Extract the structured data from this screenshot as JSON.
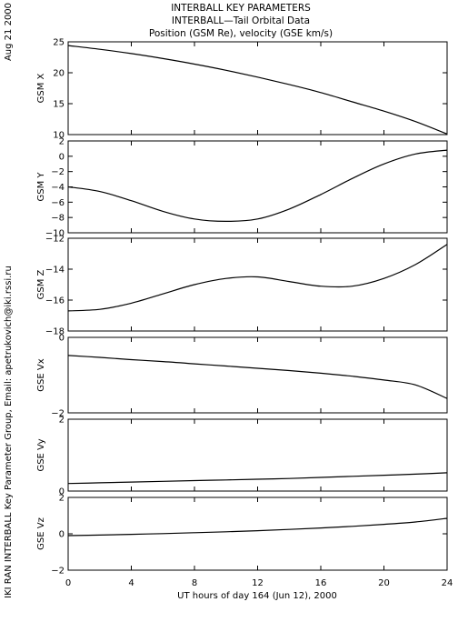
{
  "header": {
    "title_lines": [
      "INTERBALL KEY PARAMETERS",
      "INTERBALL—Tail Orbital Data",
      "Position (GSM Re), velocity (GSE km/s)"
    ],
    "date": "Aug 21 2000",
    "credit": "IKI RAN INTERBALL Key Parameter Group, Email: apetrukovich@iki.rssi.ru"
  },
  "chart_data": {
    "type": "line",
    "xlabel": "UT hours of day 164 (Jun 12), 2000",
    "xlim": [
      0,
      24
    ],
    "xticks": [
      0,
      4,
      8,
      12,
      16,
      20,
      24
    ],
    "panels": [
      {
        "ylabel": "GSM X",
        "ylim": [
          10,
          25
        ],
        "yticks": [
          10,
          15,
          20,
          25
        ],
        "x": [
          0,
          2,
          4,
          6,
          8,
          10,
          12,
          14,
          16,
          18,
          20,
          22,
          24
        ],
        "y": [
          24.4,
          23.8,
          23.1,
          22.3,
          21.4,
          20.4,
          19.3,
          18.1,
          16.8,
          15.3,
          13.8,
          12.1,
          10.1
        ]
      },
      {
        "ylabel": "GSM Y",
        "ylim": [
          -10,
          2
        ],
        "yticks": [
          -10,
          -8,
          -6,
          -4,
          -2,
          0,
          2
        ],
        "x": [
          0,
          2,
          4,
          6,
          8,
          10,
          12,
          14,
          16,
          18,
          20,
          22,
          24
        ],
        "y": [
          -4.0,
          -4.6,
          -5.8,
          -7.2,
          -8.2,
          -8.5,
          -8.2,
          -6.9,
          -5.0,
          -2.9,
          -1.0,
          0.3,
          0.8
        ]
      },
      {
        "ylabel": "GSM Z",
        "ylim": [
          -18,
          -12
        ],
        "yticks": [
          -18,
          -16,
          -14,
          -12
        ],
        "x": [
          0,
          2,
          4,
          6,
          8,
          10,
          12,
          14,
          16,
          18,
          20,
          22,
          24
        ],
        "y": [
          -16.7,
          -16.6,
          -16.2,
          -15.6,
          -15.0,
          -14.6,
          -14.5,
          -14.8,
          -15.1,
          -15.1,
          -14.6,
          -13.7,
          -12.4
        ]
      },
      {
        "ylabel": "GSE Vx",
        "ylim": [
          -2,
          0
        ],
        "yticks": [
          -2,
          0
        ],
        "x": [
          0,
          2,
          4,
          6,
          8,
          10,
          12,
          14,
          16,
          18,
          20,
          22,
          24
        ],
        "y": [
          -0.48,
          -0.53,
          -0.59,
          -0.64,
          -0.7,
          -0.76,
          -0.82,
          -0.88,
          -0.95,
          -1.03,
          -1.13,
          -1.26,
          -1.62
        ]
      },
      {
        "ylabel": "GSE Vy",
        "ylim": [
          0,
          2
        ],
        "yticks": [
          0,
          2
        ],
        "x": [
          0,
          2,
          4,
          6,
          8,
          10,
          12,
          14,
          16,
          18,
          20,
          22,
          24
        ],
        "y": [
          0.21,
          0.23,
          0.25,
          0.27,
          0.29,
          0.31,
          0.33,
          0.35,
          0.38,
          0.41,
          0.44,
          0.47,
          0.51
        ]
      },
      {
        "ylabel": "GSE Vz",
        "ylim": [
          -2,
          2
        ],
        "yticks": [
          -2,
          0,
          2
        ],
        "x": [
          0,
          2,
          4,
          6,
          8,
          10,
          12,
          14,
          16,
          18,
          20,
          22,
          24
        ],
        "y": [
          -0.1,
          -0.07,
          -0.03,
          0.01,
          0.06,
          0.11,
          0.17,
          0.24,
          0.32,
          0.41,
          0.52,
          0.65,
          0.85
        ]
      }
    ]
  }
}
